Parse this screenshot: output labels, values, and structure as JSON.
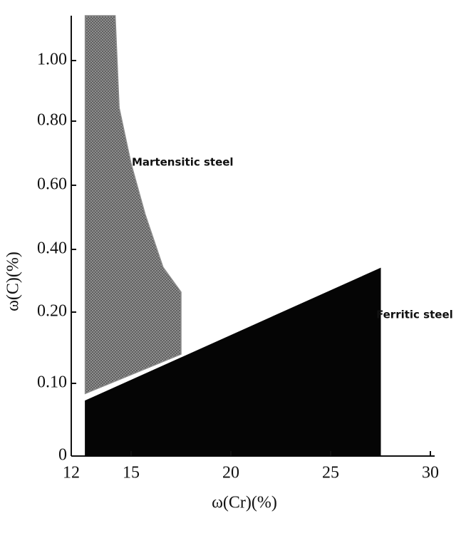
{
  "chart_data": {
    "type": "area",
    "x_label": "ω(Cr)(%)",
    "y_label": "ω(C)(%)",
    "xlim": [
      12,
      30
    ],
    "ylim": [
      0,
      1.14
    ],
    "xticks": [
      12,
      15,
      20,
      25,
      30
    ],
    "yticks": [
      0,
      {
        "value": 0.1,
        "label": "0.10"
      },
      {
        "value": 0.2,
        "label": "0.20"
      },
      {
        "value": 0.4,
        "label": "0.40"
      },
      {
        "value": 0.6,
        "label": "0.60"
      },
      {
        "value": 0.8,
        "label": "0.80"
      },
      {
        "value": 1.0,
        "label": "1.00"
      }
    ],
    "series": [
      {
        "name": "Martensitic steel",
        "color": "#8a8a8a",
        "x": [
          12.7,
          12.7,
          14.2,
          14.4,
          15.0,
          15.7,
          16.6,
          17.5,
          17.5
        ],
        "values": [
          0.086,
          1.14,
          1.14,
          0.844,
          0.667,
          0.51,
          0.343,
          0.264,
          0.141
        ]
      },
      {
        "name": "Ferritic steel",
        "color": "#050505",
        "x": [
          12.7,
          27.5,
          27.5,
          12.7
        ],
        "values": [
          0.076,
          0.34,
          0,
          0
        ]
      }
    ]
  }
}
